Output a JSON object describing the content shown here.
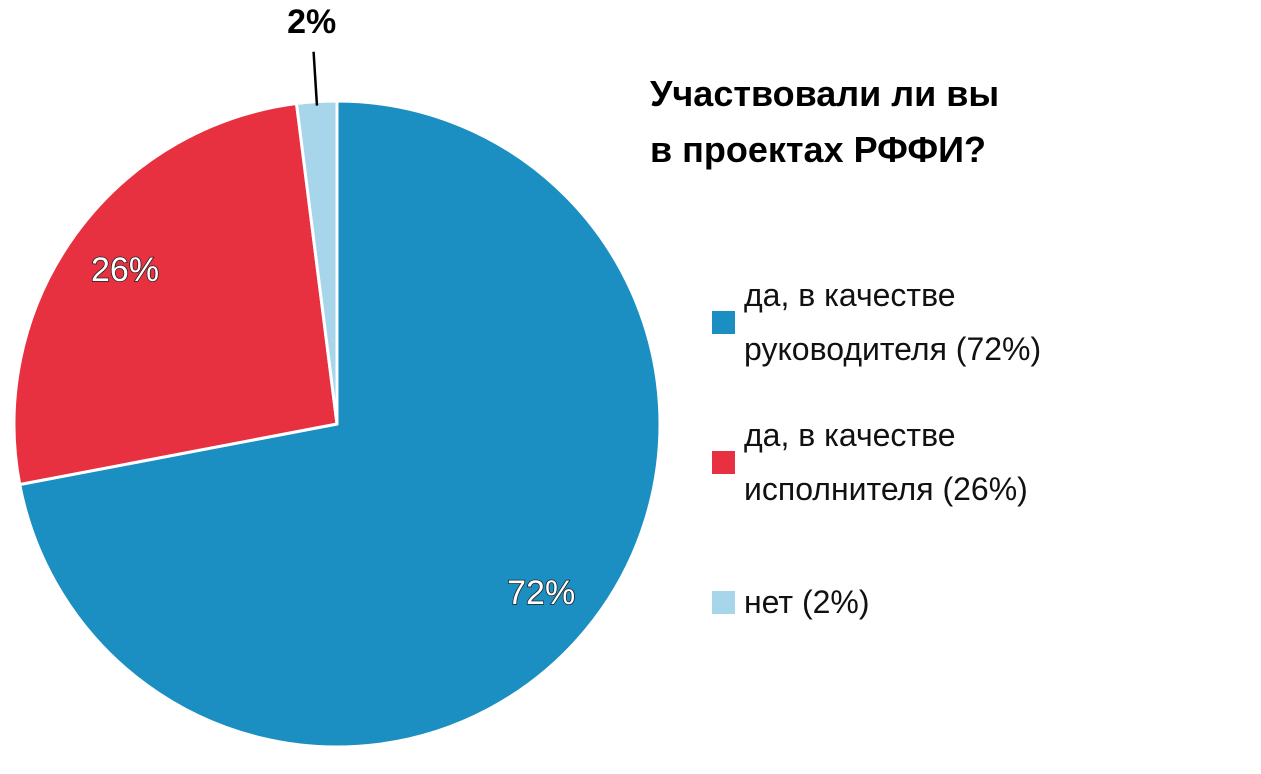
{
  "chart_data": {
    "type": "pie",
    "title": [
      "Участвовали ли вы",
      "в проектах РФФИ?"
    ],
    "slices": [
      {
        "label": "да, в качестве руководителя",
        "legend": [
          "да, в качестве",
          "руководителя (72%)"
        ],
        "value": 72,
        "value_label": "72%",
        "color": "#1b8fc2"
      },
      {
        "label": "да, в качестве исполнителя",
        "legend": [
          "да, в качестве",
          "исполнителя (26%)"
        ],
        "value": 26,
        "value_label": "26%",
        "color": "#e83140"
      },
      {
        "label": "нет",
        "legend": [
          "нет (2%)"
        ],
        "value": 2,
        "value_label": "2%",
        "color": "#a7d6eb"
      }
    ],
    "start_angle": "12 o'clock",
    "direction": "clockwise",
    "legend_position": "right"
  }
}
